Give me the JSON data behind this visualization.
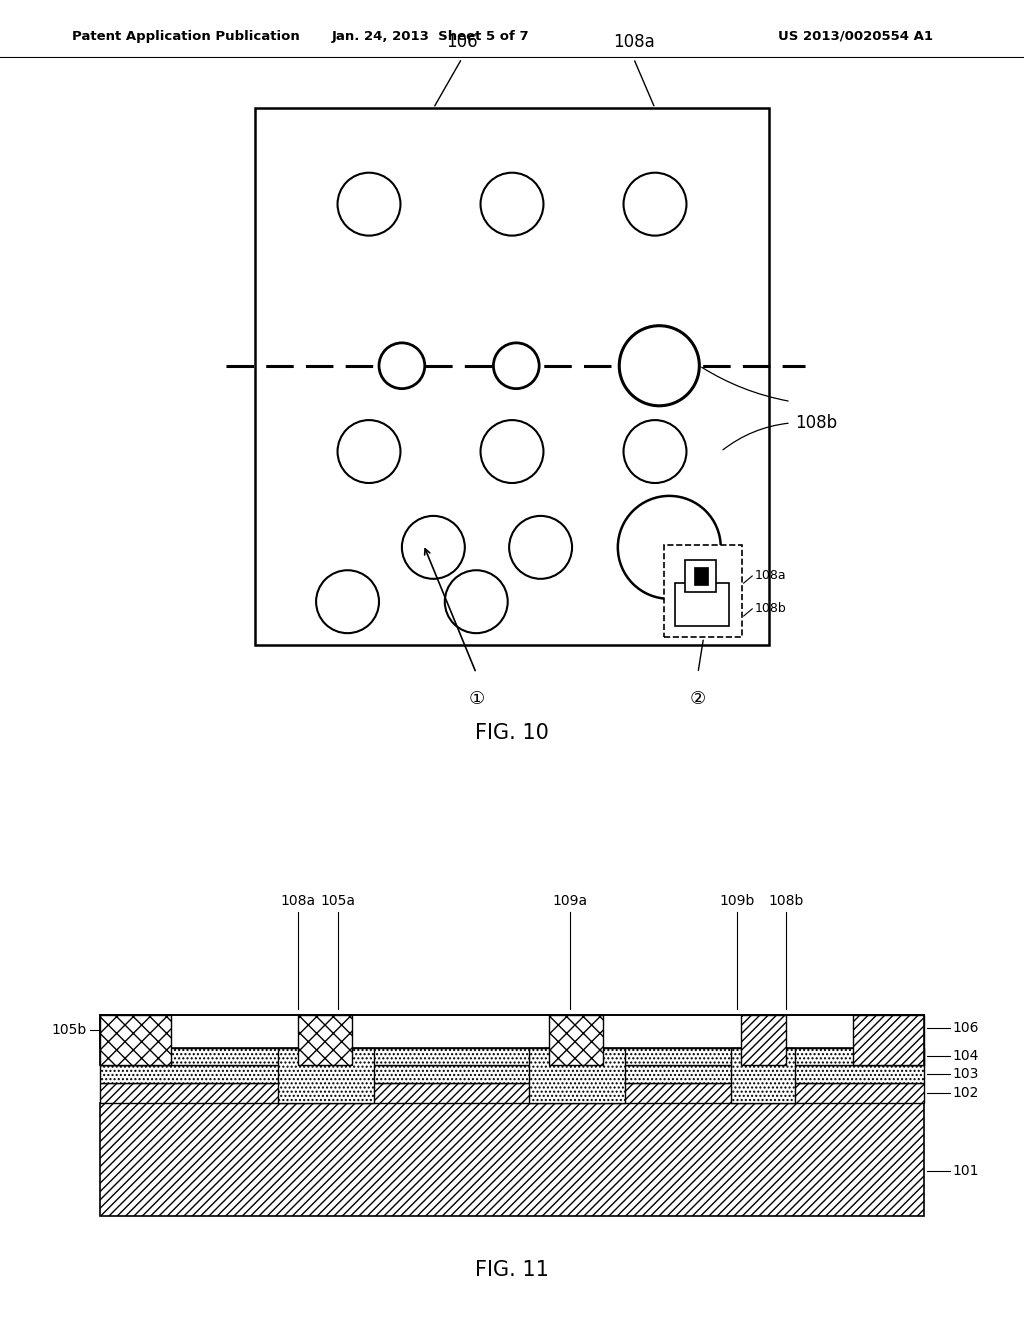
{
  "bg_color": "#ffffff",
  "header_left": "Patent Application Publication",
  "header_mid": "Jan. 24, 2013  Sheet 5 of 7",
  "header_right": "US 2013/0020554 A1",
  "fig10_title": "FIG. 10",
  "fig11_title": "FIG. 11"
}
